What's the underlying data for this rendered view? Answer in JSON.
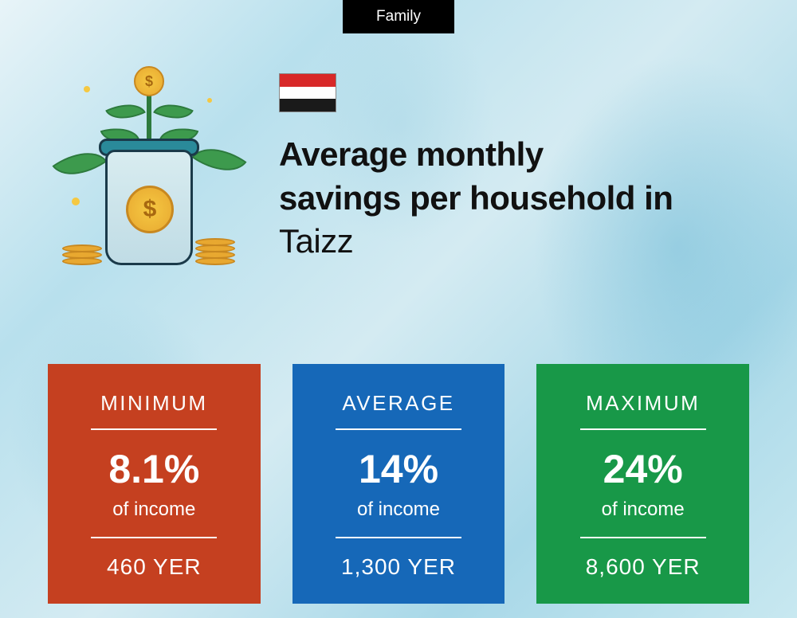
{
  "category": "Family",
  "flag": {
    "stripes": [
      "#d82828",
      "#ffffff",
      "#1a1a1a"
    ]
  },
  "title": {
    "line1": "Average monthly",
    "line2": "savings per household in",
    "location": "Taizz"
  },
  "cards": [
    {
      "label": "MINIMUM",
      "percent": "8.1%",
      "sub": "of income",
      "amount": "460 YER",
      "background": "#c54020"
    },
    {
      "label": "AVERAGE",
      "percent": "14%",
      "sub": "of income",
      "amount": "1,300 YER",
      "background": "#1668b8"
    },
    {
      "label": "MAXIMUM",
      "percent": "24%",
      "sub": "of income",
      "amount": "8,600 YER",
      "background": "#189848"
    }
  ]
}
